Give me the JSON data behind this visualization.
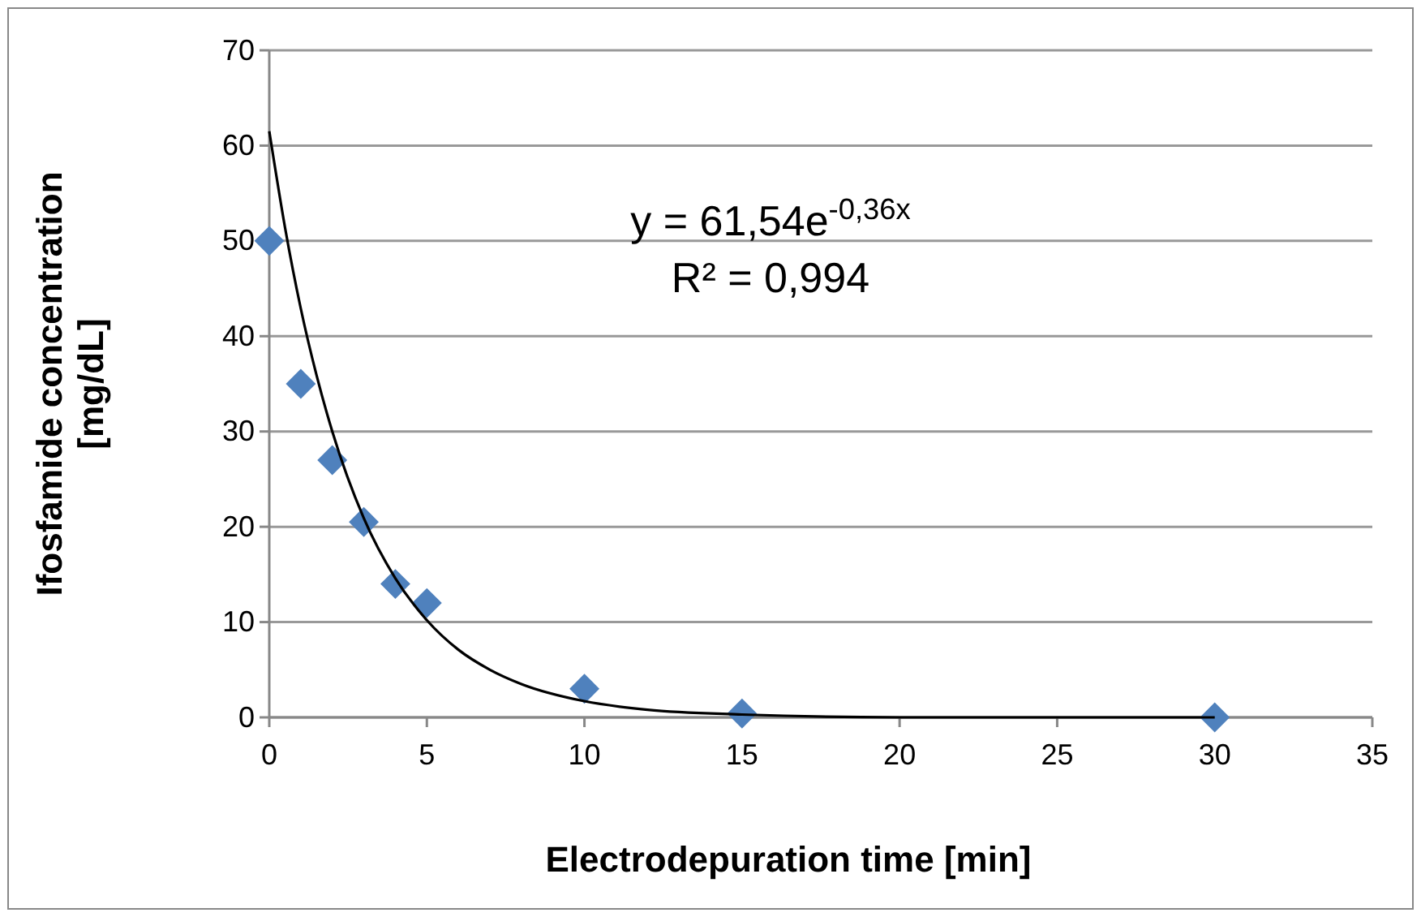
{
  "chart_data": {
    "type": "scatter",
    "xlabel": "Electrodepuration time [min]",
    "ylabel": "Ifosfamide concentration [mg/dL]",
    "xlim": [
      0,
      35
    ],
    "xticks": [
      0,
      5,
      10,
      15,
      20,
      25,
      30,
      35
    ],
    "ylim": [
      0,
      70
    ],
    "yticks": [
      0,
      10,
      20,
      30,
      40,
      50,
      60,
      70
    ],
    "grid": "y",
    "marker": "diamond",
    "series": [
      {
        "color": "#4f81bd",
        "x": [
          0,
          1,
          2,
          3,
          4,
          5,
          10,
          15,
          30
        ],
        "values": [
          50,
          35,
          27,
          20.5,
          14,
          12,
          3,
          0.4,
          0
        ]
      },
      {
        "type": "line",
        "color": "#000000",
        "marker": "none",
        "line_style": "solid",
        "x": [
          0,
          0.5,
          1,
          1.5,
          2,
          3,
          4,
          5,
          6,
          7,
          8,
          10,
          12,
          15,
          20,
          25,
          30
        ],
        "values": [
          61.5,
          51.4,
          42.9,
          35.9,
          30,
          20.9,
          14.6,
          10.2,
          7.1,
          5,
          3.5,
          1.7,
          0.8,
          0.3,
          0,
          0,
          0
        ]
      }
    ],
    "annotations": [
      "y = 61,54e$^{-0,36x}$",
      "R² = 0,994"
    ]
  }
}
